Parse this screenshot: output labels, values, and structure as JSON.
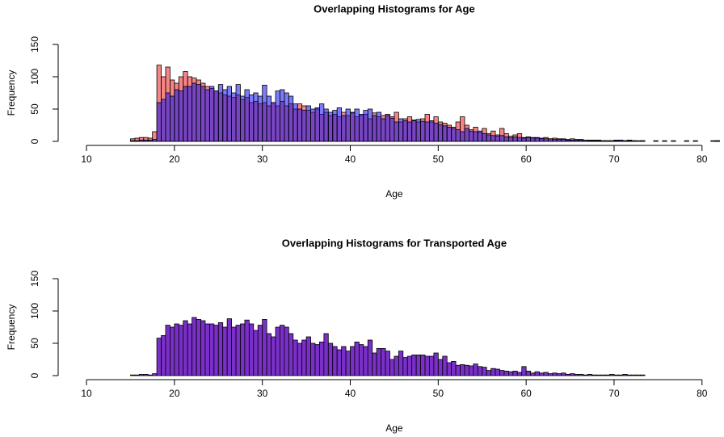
{
  "chart_data": [
    {
      "type": "histogram",
      "title": "Overlapping Histograms for Age",
      "xlabel": "Age",
      "ylabel": "Frequency",
      "bins": [
        15,
        15.5,
        16,
        16.5,
        17,
        17.5,
        18,
        18.5,
        19,
        19.5,
        20,
        20.5,
        21,
        21.5,
        22,
        22.5,
        23,
        23.5,
        24,
        24.5,
        25,
        25.5,
        26,
        26.5,
        27,
        27.5,
        28,
        28.5,
        29,
        29.5,
        30,
        30.5,
        31,
        31.5,
        32,
        32.5,
        33,
        33.5,
        34,
        34.5,
        35,
        35.5,
        36,
        36.5,
        37,
        37.5,
        38,
        38.5,
        39,
        39.5,
        40,
        40.5,
        41,
        41.5,
        42,
        42.5,
        43,
        43.5,
        44,
        44.5,
        45,
        45.5,
        46,
        46.5,
        47,
        47.5,
        48,
        48.5,
        49,
        49.5,
        50,
        50.5,
        51,
        51.5,
        52,
        52.5,
        53,
        53.5,
        54,
        54.5,
        55,
        55.5,
        56,
        56.5,
        57,
        57.5,
        58,
        58.5,
        59,
        59.5,
        60,
        60.5,
        61,
        61.5,
        62,
        62.5,
        63,
        63.5,
        64,
        64.5,
        65,
        65.5,
        66,
        66.5,
        67,
        67.5,
        68,
        68.5,
        69,
        69.5,
        70,
        70.5,
        71,
        71.5,
        72,
        72.5,
        73,
        73.5,
        74,
        74.5,
        75,
        75.5,
        76,
        76.5,
        77,
        77.5,
        78,
        78.5,
        79,
        79.5,
        80,
        80.5,
        81,
        81.5,
        82
      ],
      "series": [
        {
          "color": "#ee2020",
          "values": [
            4,
            5,
            6,
            6,
            5,
            15,
            118,
            100,
            115,
            95,
            90,
            100,
            108,
            100,
            98,
            95,
            90,
            85,
            82,
            78,
            75,
            72,
            70,
            68,
            72,
            65,
            68,
            60,
            62,
            58,
            60,
            55,
            60,
            55,
            62,
            55,
            58,
            50,
            58,
            55,
            48,
            45,
            50,
            42,
            45,
            40,
            42,
            38,
            45,
            40,
            44,
            38,
            40,
            42,
            35,
            44,
            38,
            40,
            42,
            38,
            45,
            30,
            35,
            38,
            33,
            30,
            35,
            42,
            30,
            38,
            30,
            28,
            25,
            22,
            30,
            38,
            25,
            18,
            22,
            14,
            20,
            12,
            16,
            10,
            20,
            12,
            8,
            10,
            12,
            6,
            7,
            5,
            6,
            4,
            6,
            4,
            5,
            4,
            3,
            3,
            4,
            3,
            3,
            2,
            2,
            2,
            2,
            1,
            1,
            1,
            2,
            1,
            1,
            2,
            1,
            1,
            1,
            0,
            0,
            0,
            0,
            1,
            0,
            0,
            0,
            0,
            1,
            0,
            0,
            0,
            0,
            0,
            1,
            1
          ]
        },
        {
          "color": "#1010f0",
          "values": [
            1,
            1,
            2,
            2,
            2,
            3,
            60,
            65,
            75,
            70,
            80,
            78,
            85,
            85,
            90,
            88,
            85,
            80,
            85,
            78,
            88,
            80,
            85,
            75,
            88,
            70,
            80,
            72,
            75,
            70,
            87,
            70,
            60,
            78,
            80,
            75,
            70,
            58,
            50,
            48,
            55,
            50,
            52,
            58,
            50,
            45,
            48,
            52,
            40,
            50,
            45,
            50,
            42,
            48,
            50,
            40,
            45,
            35,
            40,
            36,
            30,
            35,
            32,
            30,
            32,
            34,
            31,
            30,
            32,
            28,
            26,
            24,
            22,
            20,
            18,
            15,
            20,
            16,
            15,
            16,
            12,
            10,
            9,
            8,
            9,
            7,
            6,
            7,
            6,
            5,
            6,
            6,
            5,
            5,
            4,
            4,
            3,
            3,
            4,
            2,
            2,
            2,
            2,
            2,
            1,
            1,
            1,
            1,
            1,
            1,
            1,
            2,
            1,
            1,
            1,
            0,
            1,
            0,
            0,
            1,
            0,
            0,
            0,
            1,
            0,
            0,
            0,
            0,
            1,
            0,
            0,
            0,
            0,
            1
          ]
        }
      ],
      "alpha": 0.55,
      "xlim": [
        6.78,
        82.5
      ],
      "xticks": [
        10,
        20,
        30,
        40,
        50,
        60,
        70,
        80
      ],
      "ylim": [
        -6.25,
        156.25
      ],
      "yticks": [
        0,
        50,
        100,
        150
      ]
    },
    {
      "type": "histogram",
      "title": "Overlapping Histograms for Transported  Age",
      "xlabel": "Age",
      "ylabel": "Frequency",
      "bins": [
        15,
        15.5,
        16,
        16.5,
        17,
        17.5,
        18,
        18.5,
        19,
        19.5,
        20,
        20.5,
        21,
        21.5,
        22,
        22.5,
        23,
        23.5,
        24,
        24.5,
        25,
        25.5,
        26,
        26.5,
        27,
        27.5,
        28,
        28.5,
        29,
        29.5,
        30,
        30.5,
        31,
        31.5,
        32,
        32.5,
        33,
        33.5,
        34,
        34.5,
        35,
        35.5,
        36,
        36.5,
        37,
        37.5,
        38,
        38.5,
        39,
        39.5,
        40,
        40.5,
        41,
        41.5,
        42,
        42.5,
        43,
        43.5,
        44,
        44.5,
        45,
        45.5,
        46,
        46.5,
        47,
        47.5,
        48,
        48.5,
        49,
        49.5,
        50,
        50.5,
        51,
        51.5,
        52,
        52.5,
        53,
        53.5,
        54,
        54.5,
        55,
        55.5,
        56,
        56.5,
        57,
        57.5,
        58,
        58.5,
        59,
        59.5,
        60,
        60.5,
        61,
        61.5,
        62,
        62.5,
        63,
        63.5,
        64,
        64.5,
        65,
        65.5,
        66,
        66.5,
        67,
        67.5,
        68,
        68.5,
        69,
        69.5,
        70,
        70.5,
        71,
        71.5,
        72,
        72.5,
        73,
        73.5
      ],
      "series": [
        {
          "color": "#7a30c8",
          "values": [
            1,
            1,
            2,
            2,
            1,
            3,
            58,
            62,
            78,
            75,
            80,
            78,
            85,
            80,
            90,
            87,
            85,
            80,
            80,
            78,
            82,
            75,
            88,
            75,
            78,
            80,
            86,
            80,
            70,
            78,
            87,
            65,
            60,
            75,
            78,
            75,
            65,
            55,
            50,
            55,
            60,
            50,
            48,
            52,
            65,
            50,
            45,
            40,
            45,
            38,
            45,
            52,
            48,
            45,
            55,
            35,
            42,
            42,
            38,
            25,
            30,
            38,
            28,
            30,
            32,
            32,
            32,
            30,
            30,
            35,
            25,
            30,
            20,
            22,
            16,
            17,
            16,
            15,
            18,
            14,
            13,
            8,
            11,
            10,
            8,
            7,
            6,
            7,
            5,
            14,
            7,
            4,
            6,
            4,
            5,
            3,
            4,
            3,
            4,
            2,
            3,
            2,
            2,
            1,
            2,
            1,
            1,
            1,
            1,
            2,
            1,
            1,
            2,
            1,
            1,
            1,
            1
          ]
        }
      ],
      "xlim": [
        6.78,
        82.5
      ],
      "xticks": [
        10,
        20,
        30,
        40,
        50,
        60,
        70,
        80
      ],
      "ylim": [
        -6.25,
        156.25
      ],
      "yticks": [
        0,
        50,
        100,
        150
      ]
    }
  ]
}
